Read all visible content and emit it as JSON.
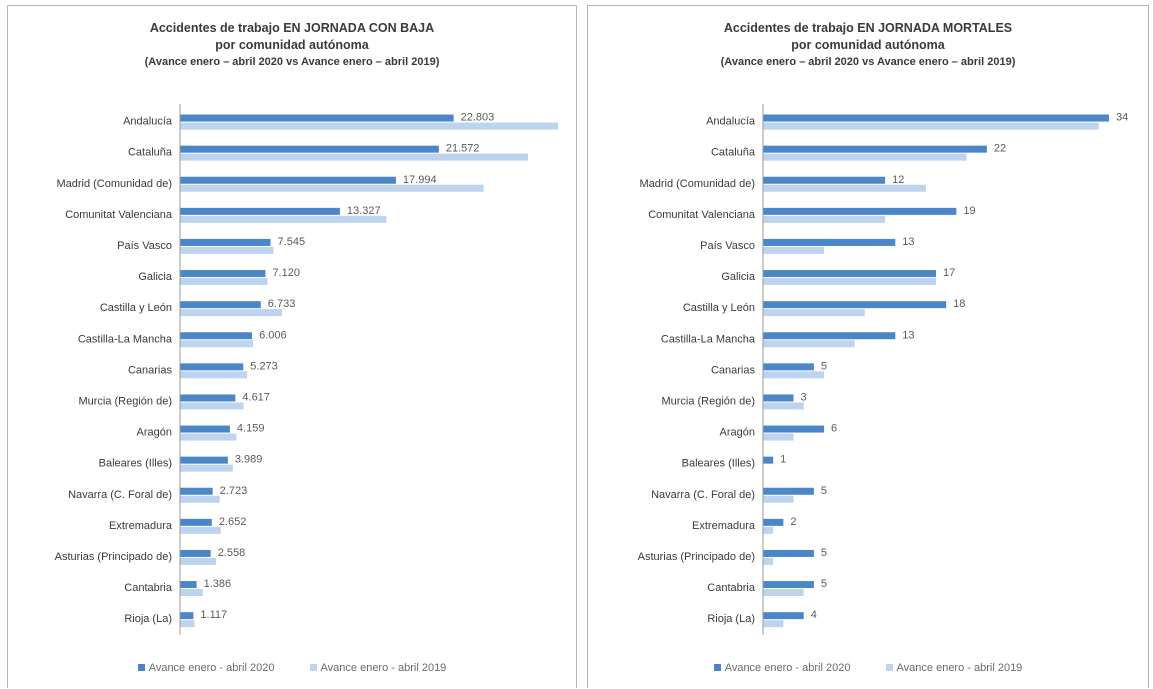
{
  "colors": {
    "series_2020": "#4a86c8",
    "series_2019": "#bcd4ee",
    "text": "#3a3a3a",
    "axis": "#9a9a9a"
  },
  "chart_data": [
    {
      "type": "bar",
      "orientation": "horizontal",
      "title_line1": "Accidentes de trabajo EN JORNADA CON BAJA",
      "title_line2": "por comunidad autónoma",
      "subtitle": "(Avance enero – abril 2020 vs Avance enero – abril 2019)",
      "categories": [
        "Andalucía",
        "Cataluña",
        "Madrid (Comunidad de)",
        "Comunitat Valenciana",
        "País Vasco",
        "Galicia",
        "Castilla y León",
        "Castilla-La Mancha",
        "Canarias",
        "Murcia (Región de)",
        "Aragón",
        "Baleares (Illes)",
        "Navarra (C. Foral de)",
        "Extremadura",
        "Asturias (Principado de)",
        "Cantabria",
        "Rioja (La)"
      ],
      "series": [
        {
          "name": "Avance enero - abril 2020",
          "values": [
            22803,
            21572,
            17994,
            13327,
            7545,
            7120,
            6733,
            6006,
            5273,
            4617,
            4159,
            3989,
            2723,
            2652,
            2558,
            1386,
            1117
          ],
          "labels": [
            "22.803",
            "21.572",
            "17.994",
            "13.327",
            "7.545",
            "7.120",
            "6.733",
            "6.006",
            "5.273",
            "4.617",
            "4.159",
            "3.989",
            "2.723",
            "2.652",
            "2.558",
            "1.386",
            "1.117"
          ]
        },
        {
          "name": "Avance enero - abril 2019",
          "values": [
            31500,
            29000,
            25300,
            17200,
            7800,
            7300,
            8500,
            6100,
            5600,
            5300,
            4700,
            4400,
            3300,
            3400,
            3000,
            1900,
            1200
          ]
        }
      ],
      "xlim": [
        0,
        31500
      ],
      "legend": "bottom"
    },
    {
      "type": "bar",
      "orientation": "horizontal",
      "title_line1": "Accidentes de trabajo EN JORNADA MORTALES",
      "title_line2": "por comunidad autónoma",
      "subtitle": "(Avance enero – abril 2020 vs Avance enero – abril 2019)",
      "categories": [
        "Andalucía",
        "Cataluña",
        "Madrid (Comunidad de)",
        "Comunitat Valenciana",
        "País Vasco",
        "Galicia",
        "Castilla y León",
        "Castilla-La Mancha",
        "Canarias",
        "Murcia (Región de)",
        "Aragón",
        "Baleares (Illes)",
        "Navarra (C. Foral de)",
        "Extremadura",
        "Asturias (Principado de)",
        "Cantabria",
        "Rioja (La)"
      ],
      "series": [
        {
          "name": "Avance enero - abril 2020",
          "values": [
            34,
            22,
            12,
            19,
            13,
            17,
            18,
            13,
            5,
            3,
            6,
            1,
            5,
            2,
            5,
            5,
            4
          ],
          "labels": [
            "34",
            "22",
            "12",
            "19",
            "13",
            "17",
            "18",
            "13",
            "5",
            "3",
            "6",
            "1",
            "5",
            "2",
            "5",
            "5",
            "4"
          ]
        },
        {
          "name": "Avance enero - abril 2019",
          "values": [
            33,
            20,
            16,
            12,
            6,
            17,
            10,
            9,
            6,
            4,
            3,
            0,
            3,
            1,
            1,
            4,
            2
          ]
        }
      ],
      "xlim": [
        0,
        34
      ],
      "legend": "bottom"
    }
  ]
}
